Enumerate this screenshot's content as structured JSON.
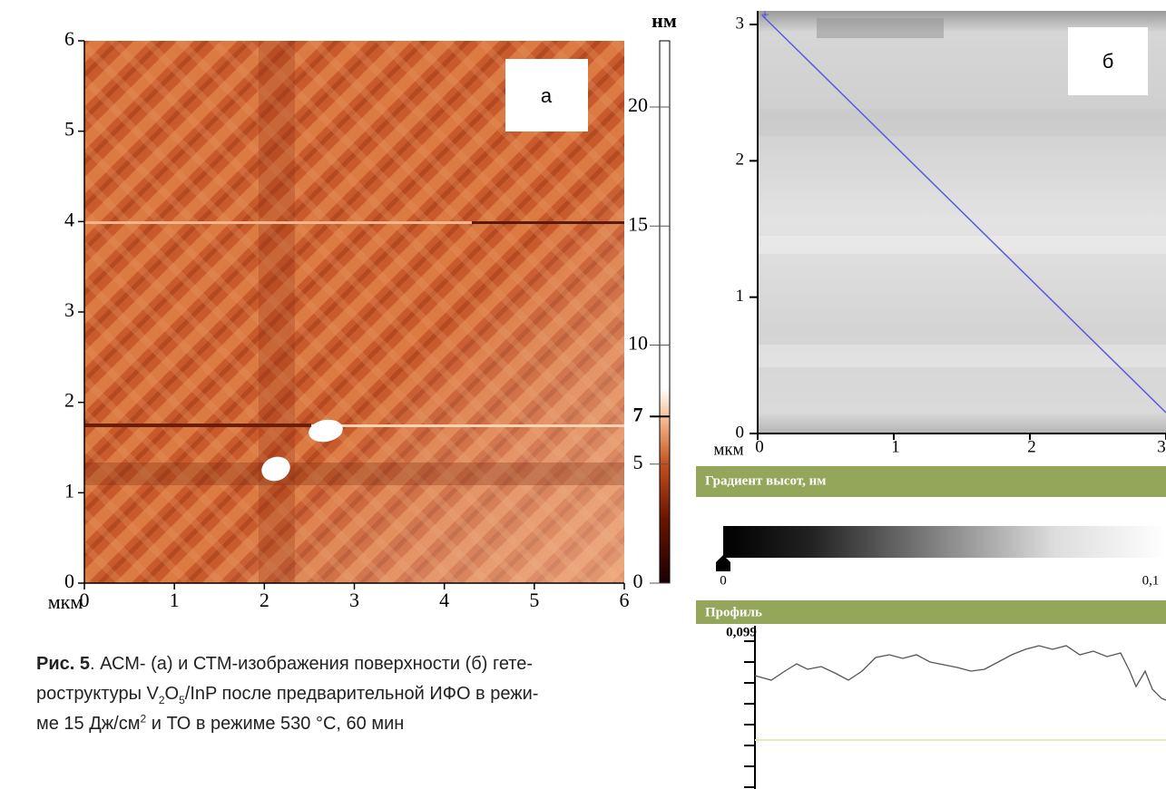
{
  "panel_a": {
    "label": "а",
    "x_unit": "мкм",
    "xticks": [
      0,
      1,
      2,
      3,
      4,
      5,
      6
    ],
    "yticks": [
      0,
      1,
      2,
      3,
      4,
      5,
      6
    ],
    "colorbar": {
      "unit": "нм",
      "ticks": [
        0,
        5,
        7,
        10,
        15,
        20
      ]
    }
  },
  "panel_b": {
    "label": "б",
    "x_unit": "мкм",
    "xticks": [
      0,
      1,
      2,
      3
    ],
    "yticks": [
      0,
      1,
      2,
      3
    ],
    "gradient": {
      "title": "Градиент высот, нм",
      "min": 0,
      "max": "0,1"
    },
    "profile": {
      "title": "Профиль",
      "max_label": "0,099"
    }
  },
  "caption": {
    "lines": [
      [
        "Рис. 5",
        ". АСМ- (а) и СТМ-изображения поверхности (б) гете-"
      ],
      [
        "роструктуры V",
        "2",
        "O",
        "5",
        "/InP после предварительной ИФО в режи-"
      ],
      [
        "ме 15 Дж/см",
        "2",
        " и ТО в режиме 530 °C, 60 мин"
      ]
    ]
  }
}
